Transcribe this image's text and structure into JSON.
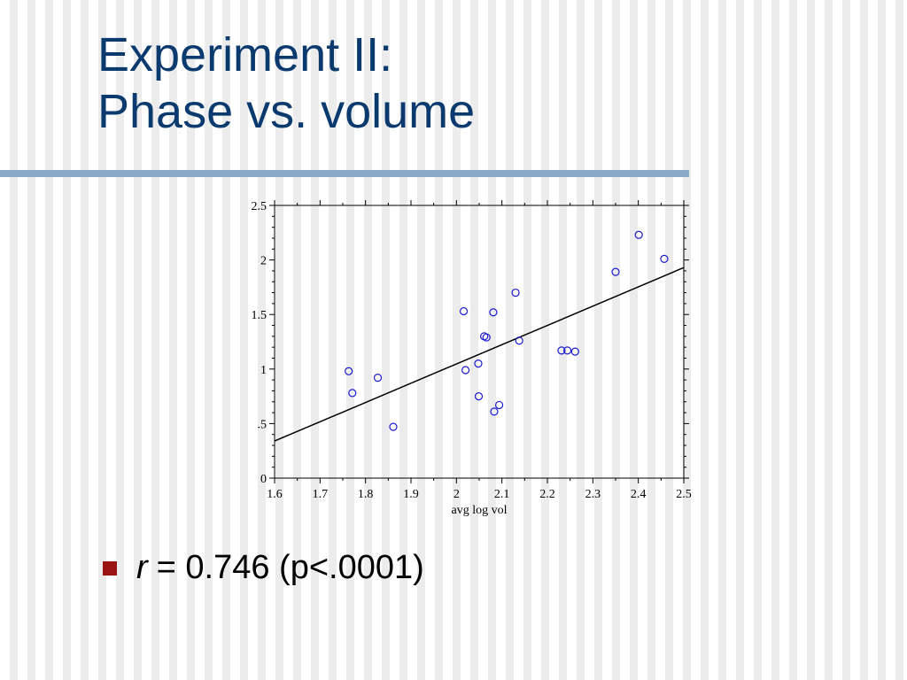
{
  "slide": {
    "title_line1": "Experiment II:",
    "title_line2": "Phase vs. volume",
    "bullet": {
      "variable": "r",
      "text": "= 0.746 (p<.0001)"
    }
  },
  "colors": {
    "title": "#0b3a6e",
    "rule": "#8aa8c8",
    "bullet_square": "#9a1414",
    "points": "#1a1ad0",
    "fit_line": "#000000"
  },
  "chart_data": {
    "type": "scatter",
    "xlabel": "avg log vol",
    "ylabel": "",
    "xlim": [
      1.6,
      2.5
    ],
    "ylim": [
      0,
      2.5
    ],
    "x_ticks": [
      "1.6",
      "1.7",
      "1.8",
      "1.9",
      "2",
      "2.1",
      "2.2",
      "2.3",
      "2.4",
      "2.5"
    ],
    "y_ticks": [
      "0",
      ".5",
      "1",
      "1.5",
      "2",
      "2.5"
    ],
    "x_tick_values": [
      1.6,
      1.7,
      1.8,
      1.9,
      2.0,
      2.1,
      2.2,
      2.3,
      2.4,
      2.5
    ],
    "y_tick_values": [
      0,
      0.5,
      1.0,
      1.5,
      2.0,
      2.5
    ],
    "points": [
      {
        "x": 1.763,
        "y": 0.98
      },
      {
        "x": 1.771,
        "y": 0.78
      },
      {
        "x": 1.827,
        "y": 0.92
      },
      {
        "x": 1.861,
        "y": 0.47
      },
      {
        "x": 2.016,
        "y": 1.53
      },
      {
        "x": 2.02,
        "y": 0.99
      },
      {
        "x": 2.048,
        "y": 1.05
      },
      {
        "x": 2.049,
        "y": 0.75
      },
      {
        "x": 2.061,
        "y": 1.3
      },
      {
        "x": 2.066,
        "y": 1.29
      },
      {
        "x": 2.081,
        "y": 1.52
      },
      {
        "x": 2.083,
        "y": 0.61
      },
      {
        "x": 2.094,
        "y": 0.67
      },
      {
        "x": 2.13,
        "y": 1.7
      },
      {
        "x": 2.138,
        "y": 1.26
      },
      {
        "x": 2.231,
        "y": 1.17
      },
      {
        "x": 2.244,
        "y": 1.17
      },
      {
        "x": 2.261,
        "y": 1.16
      },
      {
        "x": 2.35,
        "y": 1.89
      },
      {
        "x": 2.401,
        "y": 2.23
      },
      {
        "x": 2.457,
        "y": 2.01
      }
    ],
    "fit_line": {
      "x": [
        1.6,
        2.5
      ],
      "y": [
        0.34,
        1.93
      ]
    }
  }
}
